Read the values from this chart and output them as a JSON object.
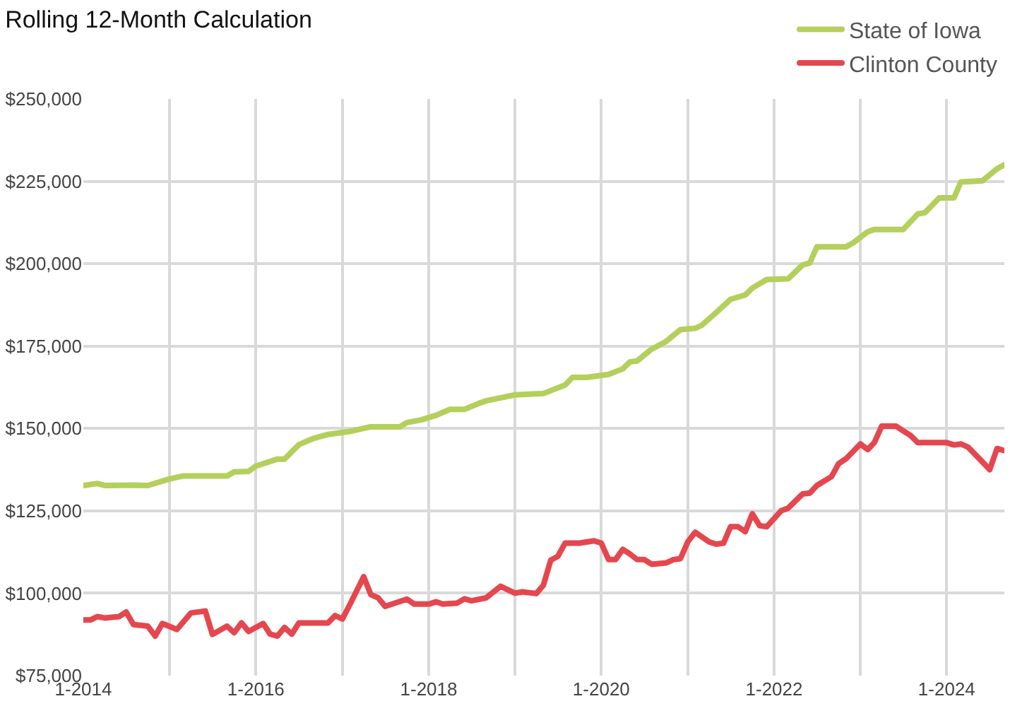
{
  "chart_data": {
    "type": "line",
    "title": "Rolling 12-Month Calculation",
    "xlim": [
      "2014-01",
      "2024-09"
    ],
    "ylim": [
      75000,
      250000
    ],
    "xticks": [
      {
        "value": "2014-01",
        "label": "1-2014"
      },
      {
        "value": "2015-01",
        "label": null
      },
      {
        "value": "2016-01",
        "label": "1-2016"
      },
      {
        "value": "2017-01",
        "label": null
      },
      {
        "value": "2018-01",
        "label": "1-2018"
      },
      {
        "value": "2019-01",
        "label": null
      },
      {
        "value": "2020-01",
        "label": "1-2020"
      },
      {
        "value": "2021-01",
        "label": null
      },
      {
        "value": "2022-01",
        "label": "1-2022"
      },
      {
        "value": "2023-01",
        "label": null
      },
      {
        "value": "2024-01",
        "label": "1-2024"
      }
    ],
    "yticks": [
      {
        "value": 75000,
        "label": "$75,000"
      },
      {
        "value": 100000,
        "label": "$100,000"
      },
      {
        "value": 125000,
        "label": "$125,000"
      },
      {
        "value": 150000,
        "label": "$150,000"
      },
      {
        "value": 175000,
        "label": "$175,000"
      },
      {
        "value": 200000,
        "label": "$200,000"
      },
      {
        "value": 225000,
        "label": "$225,000"
      },
      {
        "value": 250000,
        "label": "$250,000"
      }
    ],
    "grid": true,
    "legend": "top right",
    "marker": "none",
    "line_style": "solid",
    "series": [
      {
        "name": "State of Iowa",
        "color": "#b5cf5c",
        "x": [
          "2014-01",
          "2014-03",
          "2014-04",
          "2014-08",
          "2014-10",
          "2015-01",
          "2015-03",
          "2015-09",
          "2015-10",
          "2015-12",
          "2016-01",
          "2016-04",
          "2016-05",
          "2016-07",
          "2016-09",
          "2016-11",
          "2017-02",
          "2017-05",
          "2017-09",
          "2017-10",
          "2017-12",
          "2018-02",
          "2018-04",
          "2018-06",
          "2018-08",
          "2018-09",
          "2019-01",
          "2019-05",
          "2019-08",
          "2019-09",
          "2019-11",
          "2020-02",
          "2020-04",
          "2020-05",
          "2020-06",
          "2020-08",
          "2020-10",
          "2020-12",
          "2021-02",
          "2021-03",
          "2021-05",
          "2021-07",
          "2021-09",
          "2021-10",
          "2021-12",
          "2022-03",
          "2022-05",
          "2022-06",
          "2022-07",
          "2022-11",
          "2022-12",
          "2023-02",
          "2023-03",
          "2023-07",
          "2023-09",
          "2023-10",
          "2023-12",
          "2024-02",
          "2024-03",
          "2024-06",
          "2024-08",
          "2024-09"
        ],
        "values": [
          132700,
          133300,
          132700,
          132800,
          132700,
          134700,
          135600,
          135600,
          136800,
          137000,
          138600,
          140700,
          140700,
          145100,
          147000,
          148200,
          149100,
          150500,
          150500,
          151800,
          152600,
          154000,
          155800,
          155800,
          157600,
          158400,
          160200,
          160600,
          163200,
          165500,
          165500,
          166400,
          168100,
          170200,
          170500,
          174100,
          176400,
          180000,
          180400,
          181300,
          185200,
          189200,
          190500,
          192600,
          195200,
          195400,
          199600,
          200200,
          205100,
          205100,
          206300,
          209700,
          210400,
          210400,
          215100,
          215500,
          220000,
          220000,
          224800,
          225200,
          228800,
          230000
        ]
      },
      {
        "name": "Clinton County",
        "color": "#e5474f",
        "x": [
          "2014-01",
          "2014-02",
          "2014-03",
          "2014-04",
          "2014-06",
          "2014-07",
          "2014-08",
          "2014-10",
          "2014-11",
          "2014-12",
          "2015-02",
          "2015-04",
          "2015-06",
          "2015-07",
          "2015-09",
          "2015-10",
          "2015-11",
          "2015-12",
          "2016-02",
          "2016-03",
          "2016-04",
          "2016-05",
          "2016-06",
          "2016-07",
          "2016-11",
          "2016-12",
          "2017-01",
          "2017-02",
          "2017-04",
          "2017-05",
          "2017-06",
          "2017-07",
          "2017-10",
          "2017-11",
          "2018-01",
          "2018-02",
          "2018-03",
          "2018-05",
          "2018-06",
          "2018-07",
          "2018-09",
          "2018-11",
          "2019-01",
          "2019-02",
          "2019-04",
          "2019-05",
          "2019-06",
          "2019-07",
          "2019-08",
          "2019-10",
          "2019-12",
          "2020-01",
          "2020-02",
          "2020-03",
          "2020-04",
          "2020-05",
          "2020-06",
          "2020-07",
          "2020-08",
          "2020-10",
          "2020-11",
          "2020-12",
          "2021-01",
          "2021-02",
          "2021-04",
          "2021-05",
          "2021-06",
          "2021-07",
          "2021-08",
          "2021-09",
          "2021-10",
          "2021-11",
          "2021-12",
          "2022-02",
          "2022-03",
          "2022-05",
          "2022-06",
          "2022-07",
          "2022-09",
          "2022-10",
          "2022-11",
          "2023-01",
          "2023-02",
          "2023-03",
          "2023-04",
          "2023-06",
          "2023-07",
          "2023-08",
          "2023-09",
          "2024-01",
          "2024-02",
          "2024-03",
          "2024-04",
          "2024-06",
          "2024-07",
          "2024-08",
          "2024-09"
        ],
        "values": [
          91900,
          91900,
          92900,
          92500,
          92900,
          94300,
          90500,
          90000,
          87000,
          90800,
          89000,
          94000,
          94600,
          87500,
          90000,
          88000,
          91000,
          88400,
          90800,
          87600,
          87000,
          89600,
          87600,
          91000,
          91000,
          93200,
          92200,
          96500,
          105000,
          99600,
          98600,
          96000,
          98200,
          96700,
          96700,
          97400,
          96700,
          97000,
          98300,
          97700,
          98600,
          102100,
          100000,
          100400,
          99900,
          102400,
          110000,
          111200,
          115200,
          115200,
          115900,
          115200,
          110200,
          110200,
          113300,
          111900,
          110200,
          110200,
          108800,
          109200,
          110200,
          110500,
          115600,
          118500,
          115600,
          114900,
          115200,
          120200,
          120200,
          118700,
          124100,
          120500,
          120200,
          125100,
          125800,
          130100,
          130400,
          132700,
          135400,
          139300,
          140800,
          145300,
          143600,
          145700,
          150700,
          150700,
          149300,
          147900,
          145700,
          145700,
          145000,
          145300,
          144300,
          139800,
          137500,
          143900,
          143300
        ]
      }
    ]
  }
}
